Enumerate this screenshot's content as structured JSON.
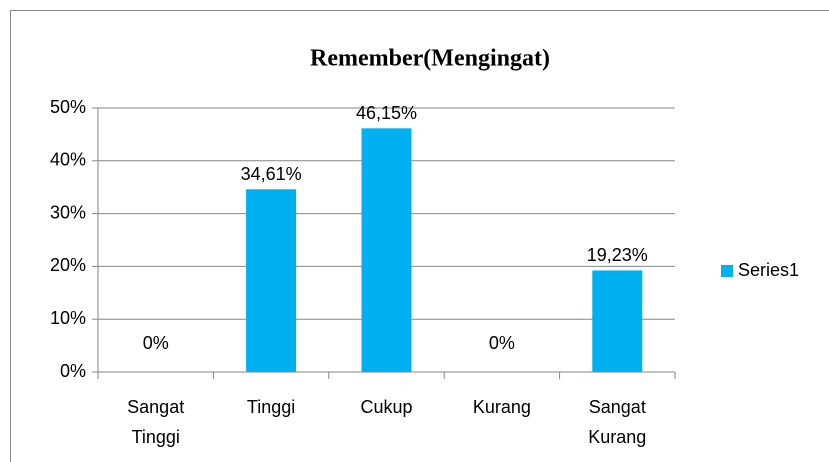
{
  "chart_data": {
    "type": "bar",
    "title": "Remember(Mengingat)",
    "categories": [
      "Sangat Tinggi",
      "Tinggi",
      "Cukup",
      "Kurang",
      "Sangat Kurang"
    ],
    "series": [
      {
        "name": "Series1",
        "color": "#00b0f0",
        "values": [
          0,
          34.61,
          46.15,
          0,
          19.23
        ],
        "value_labels": [
          "0%",
          "34,61%",
          "46,15%",
          "0%",
          "19,23%"
        ]
      }
    ],
    "ylim": [
      0,
      50
    ],
    "yticks": [
      {
        "value": 0,
        "label": "0%"
      },
      {
        "value": 10,
        "label": "10%"
      },
      {
        "value": 20,
        "label": "20%"
      },
      {
        "value": 30,
        "label": "30%"
      },
      {
        "value": 40,
        "label": "40%"
      },
      {
        "value": 50,
        "label": "50%"
      }
    ],
    "grid": true,
    "legend": "right"
  }
}
